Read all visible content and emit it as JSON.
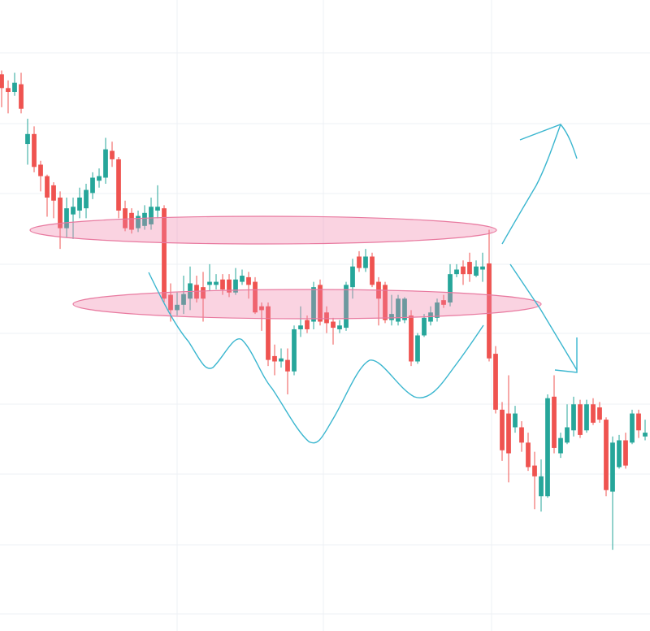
{
  "chart_data": {
    "type": "candlestick",
    "up_color": "#26a69a",
    "down_color": "#ef5350",
    "ylim": [
      -24,
      800
    ],
    "series": {
      "open": [
        703,
        685,
        680,
        690,
        612,
        625,
        585,
        570,
        558,
        542,
        502,
        520,
        525,
        528,
        548,
        564,
        568,
        603,
        592,
        528,
        522,
        502,
        505,
        507,
        525,
        528,
        415,
        395,
        402,
        410,
        428,
        425,
        428,
        428,
        435,
        435,
        418,
        432,
        438,
        432,
        400,
        400,
        335,
        328,
        330,
        315,
        370,
        382,
        380,
        428,
        392,
        380,
        370,
        372,
        425,
        465,
        450,
        465,
        432,
        428,
        382,
        380,
        382,
        388,
        328,
        362,
        380,
        385,
        408,
        405,
        442,
        452,
        458,
        440,
        448,
        456,
        338,
        265,
        260,
        242,
        242,
        222,
        192,
        152,
        152,
        282,
        208,
        222,
        238,
        272,
        238,
        272,
        268,
        252,
        158,
        190,
        225,
        222,
        260,
        230
      ],
      "high": [
        708,
        695,
        705,
        705,
        645,
        635,
        590,
        572,
        562,
        550,
        542,
        542,
        555,
        560,
        575,
        580,
        620,
        615,
        595,
        538,
        528,
        525,
        532,
        542,
        558,
        532,
        430,
        418,
        440,
        452,
        440,
        445,
        455,
        442,
        442,
        442,
        450,
        448,
        445,
        438,
        405,
        405,
        350,
        345,
        345,
        375,
        400,
        388,
        432,
        435,
        400,
        385,
        382,
        432,
        462,
        472,
        475,
        470,
        438,
        432,
        415,
        415,
        412,
        395,
        365,
        390,
        400,
        410,
        415,
        455,
        455,
        460,
        470,
        460,
        470,
        500,
        348,
        275,
        310,
        270,
        250,
        235,
        210,
        200,
        285,
        310,
        235,
        272,
        282,
        278,
        278,
        280,
        275,
        255,
        230,
        232,
        235,
        265,
        265,
        252
      ],
      "low": [
        660,
        652,
        675,
        652,
        585,
        575,
        550,
        517,
        515,
        475,
        490,
        488,
        515,
        515,
        540,
        555,
        560,
        582,
        515,
        498,
        495,
        497,
        500,
        500,
        515,
        405,
        380,
        388,
        390,
        395,
        405,
        380,
        420,
        422,
        415,
        412,
        415,
        428,
        410,
        390,
        368,
        322,
        310,
        320,
        285,
        310,
        360,
        365,
        370,
        375,
        365,
        350,
        365,
        368,
        410,
        445,
        445,
        425,
        375,
        378,
        375,
        375,
        378,
        322,
        325,
        360,
        375,
        380,
        398,
        400,
        438,
        428,
        432,
        438,
        432,
        328,
        260,
        198,
        170,
        235,
        210,
        185,
        135,
        132,
        150,
        208,
        202,
        220,
        230,
        228,
        235,
        245,
        248,
        152,
        82,
        188,
        188,
        220,
        228,
        225
      ],
      "close": [
        685,
        680,
        692,
        658,
        625,
        582,
        570,
        542,
        538,
        502,
        528,
        530,
        542,
        552,
        568,
        570,
        605,
        592,
        525,
        502,
        500,
        518,
        522,
        530,
        530,
        410,
        395,
        402,
        416,
        430,
        410,
        410,
        432,
        432,
        422,
        418,
        435,
        440,
        428,
        392,
        395,
        330,
        328,
        332,
        315,
        370,
        375,
        370,
        425,
        380,
        378,
        372,
        375,
        428,
        452,
        450,
        465,
        428,
        410,
        382,
        390,
        410,
        410,
        328,
        362,
        385,
        392,
        405,
        402,
        442,
        448,
        442,
        442,
        452,
        452,
        332,
        265,
        212,
        208,
        260,
        222,
        190,
        178,
        178,
        280,
        215,
        228,
        242,
        272,
        232,
        272,
        248,
        252,
        160,
        222,
        225,
        192,
        260,
        238,
        235
      ]
    }
  }
}
